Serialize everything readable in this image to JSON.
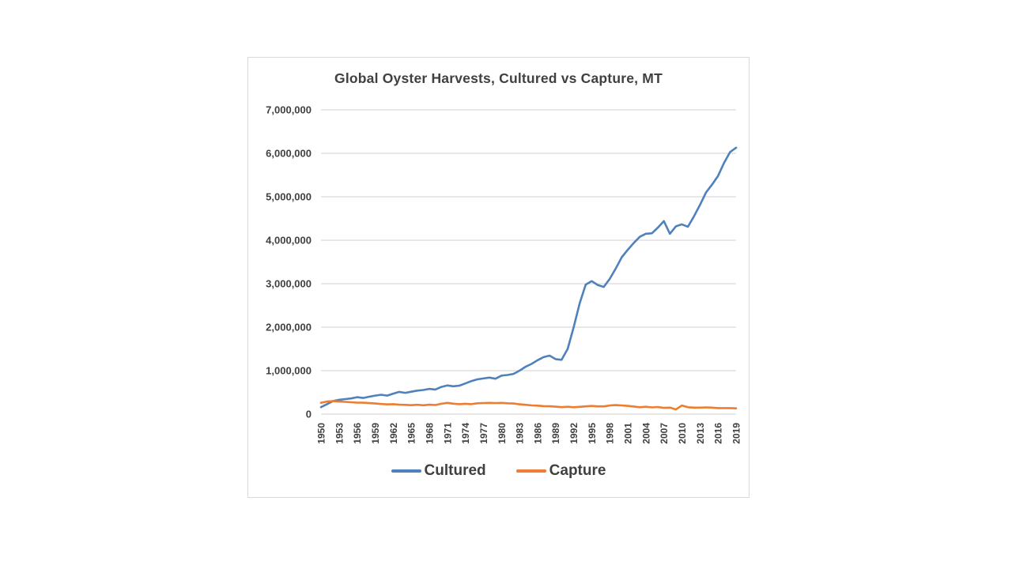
{
  "colors": {
    "cultured": "#4F81BD",
    "capture": "#ED7D31",
    "text": "#404040",
    "grid": "#D9D9D9",
    "border": "#D9D9D9",
    "background": "#FFFFFF"
  },
  "chart": {
    "title": "Global Oyster Harvests, Cultured vs Capture, MT",
    "legend": [
      {
        "label": "Cultured",
        "color": "#4F81BD"
      },
      {
        "label": "Capture",
        "color": "#ED7D31"
      }
    ]
  },
  "chart_data": {
    "type": "line",
    "title": "Global Oyster Harvests, Cultured vs Capture, MT",
    "xlabel": "",
    "ylabel": "",
    "ylim": [
      0,
      7000000
    ],
    "ytick_step": 1000000,
    "ytick_labels": [
      "0",
      "1,000,000",
      "2,000,000",
      "3,000,000",
      "4,000,000",
      "5,000,000",
      "6,000,000",
      "7,000,000"
    ],
    "xtick_labels": [
      "1950",
      "1953",
      "1956",
      "1959",
      "1962",
      "1965",
      "1968",
      "1971",
      "1974",
      "1977",
      "1980",
      "1983",
      "1986",
      "1989",
      "1992",
      "1995",
      "1998",
      "2001",
      "2004",
      "2007",
      "2010",
      "2013",
      "2016",
      "2019"
    ],
    "grid": true,
    "legend_position": "bottom",
    "x": [
      1950,
      1951,
      1952,
      1953,
      1954,
      1955,
      1956,
      1957,
      1958,
      1959,
      1960,
      1961,
      1962,
      1963,
      1964,
      1965,
      1966,
      1967,
      1968,
      1969,
      1970,
      1971,
      1972,
      1973,
      1974,
      1975,
      1976,
      1977,
      1978,
      1979,
      1980,
      1981,
      1982,
      1983,
      1984,
      1985,
      1986,
      1987,
      1988,
      1989,
      1990,
      1991,
      1992,
      1993,
      1994,
      1995,
      1996,
      1997,
      1998,
      1999,
      2000,
      2001,
      2002,
      2003,
      2004,
      2005,
      2006,
      2007,
      2008,
      2009,
      2010,
      2011,
      2012,
      2013,
      2014,
      2015,
      2016,
      2017,
      2018,
      2019
    ],
    "series": [
      {
        "name": "Cultured",
        "color": "#4F81BD",
        "values": [
          160000,
          230000,
          300000,
          330000,
          345000,
          360000,
          390000,
          370000,
          400000,
          425000,
          445000,
          425000,
          470000,
          510000,
          490000,
          515000,
          540000,
          555000,
          580000,
          565000,
          625000,
          660000,
          640000,
          655000,
          705000,
          760000,
          800000,
          820000,
          840000,
          815000,
          885000,
          900000,
          925000,
          1000000,
          1090000,
          1155000,
          1240000,
          1310000,
          1345000,
          1265000,
          1250000,
          1500000,
          2000000,
          2550000,
          2980000,
          3060000,
          2970000,
          2925000,
          3110000,
          3350000,
          3610000,
          3780000,
          3940000,
          4080000,
          4150000,
          4160000,
          4290000,
          4440000,
          4150000,
          4320000,
          4365000,
          4310000,
          4550000,
          4810000,
          5100000,
          5280000,
          5480000,
          5780000,
          6030000,
          6130000
        ]
      },
      {
        "name": "Capture",
        "color": "#ED7D31",
        "values": [
          260000,
          290000,
          298000,
          290000,
          282000,
          272000,
          263000,
          262000,
          252000,
          243000,
          233000,
          224000,
          230000,
          219000,
          213000,
          205000,
          214000,
          204000,
          216000,
          209000,
          239000,
          258000,
          240000,
          229000,
          238000,
          229000,
          249000,
          255000,
          258000,
          254000,
          259000,
          250000,
          244000,
          225000,
          214000,
          200000,
          194000,
          184000,
          180000,
          170000,
          160000,
          169000,
          159000,
          168000,
          178000,
          188000,
          179000,
          178000,
          198000,
          208000,
          198000,
          189000,
          174000,
          159000,
          169000,
          154000,
          164000,
          144000,
          149000,
          108000,
          198000,
          158000,
          149000,
          149000,
          154000,
          149000,
          139000,
          139000,
          138000,
          133000
        ]
      }
    ]
  }
}
